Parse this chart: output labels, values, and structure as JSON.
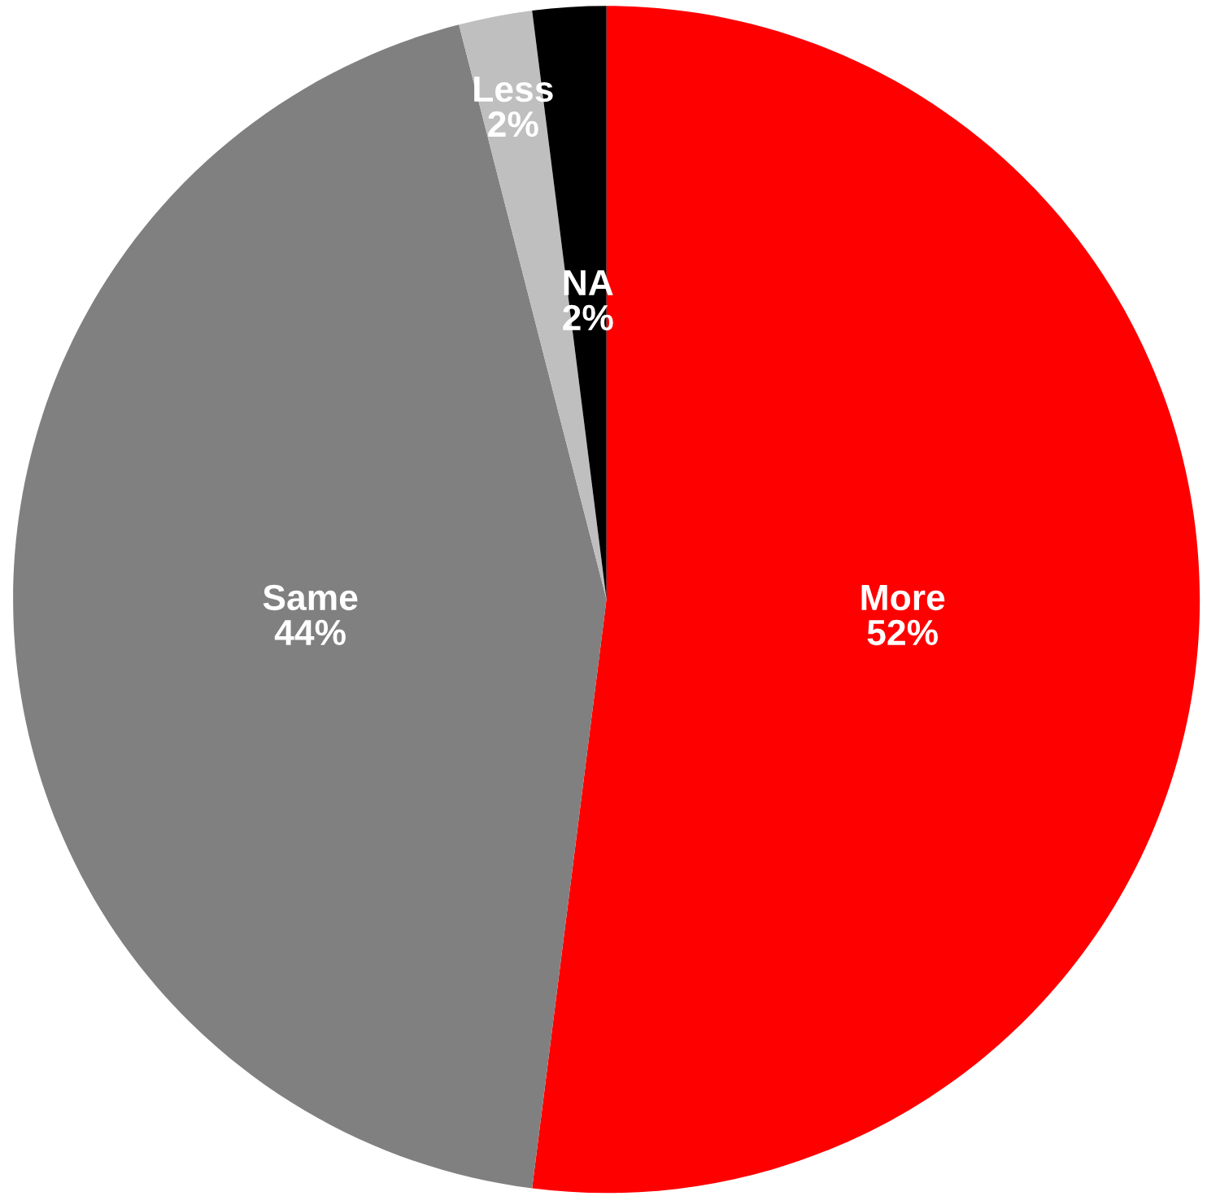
{
  "chart_data": {
    "type": "pie",
    "categories": [
      "More",
      "Same",
      "Less",
      "NA"
    ],
    "values": [
      52,
      44,
      2,
      2
    ],
    "colors": [
      "#ff0000",
      "#808080",
      "#bfbfbf",
      "#000000"
    ],
    "value_labels": [
      "52%",
      "44%",
      "2%",
      "2%"
    ]
  }
}
